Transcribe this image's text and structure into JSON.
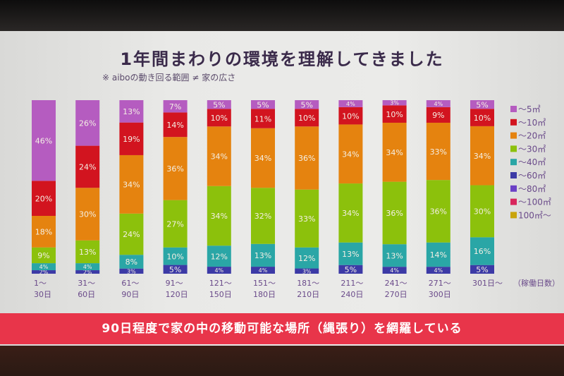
{
  "title": "1年間まわりの環境を理解してきました",
  "subtitle": "※ aiboの動き回る範囲 ≠ 家の広さ",
  "banner": "90日程度で家の中の移動可能な場所（縄張り）を網羅している",
  "chart_data": {
    "type": "bar",
    "stacked": true,
    "orientation": "vertical",
    "categories": [
      [
        "1～",
        "30日"
      ],
      [
        "31～",
        "60日"
      ],
      [
        "61～",
        "90日"
      ],
      [
        "91～",
        "120日"
      ],
      [
        "121～",
        "150日"
      ],
      [
        "151～",
        "180日"
      ],
      [
        "181～",
        "210日"
      ],
      [
        "211～",
        "240日"
      ],
      [
        "241～",
        "270日"
      ],
      [
        "271～",
        "300日"
      ],
      [
        "301日～",
        ""
      ]
    ],
    "x_unit_label": "（稼働日数）",
    "ylim": [
      0,
      100
    ],
    "value_suffix": "%",
    "legend_position": "right",
    "series": [
      {
        "name": "～5㎡",
        "color": "#b55cc0",
        "values": [
          46,
          26,
          13,
          7,
          5,
          5,
          5,
          4,
          3,
          4,
          5
        ]
      },
      {
        "name": "～10㎡",
        "color": "#d2141f",
        "values": [
          20,
          24,
          19,
          14,
          10,
          11,
          10,
          10,
          10,
          9,
          10
        ]
      },
      {
        "name": "～20㎡",
        "color": "#e5830f",
        "values": [
          18,
          30,
          34,
          36,
          34,
          34,
          36,
          34,
          34,
          33,
          34
        ]
      },
      {
        "name": "～30㎡",
        "color": "#8cc10c",
        "values": [
          9,
          13,
          24,
          27,
          34,
          32,
          33,
          34,
          36,
          36,
          30
        ]
      },
      {
        "name": "～40㎡",
        "color": "#2aa6a6",
        "values": [
          4,
          4,
          8,
          10,
          12,
          13,
          12,
          13,
          13,
          14,
          16
        ]
      },
      {
        "name": "～60㎡",
        "color": "#3c3aa6",
        "values": [
          2,
          2,
          3,
          5,
          4,
          4,
          3,
          5,
          4,
          4,
          5
        ]
      },
      {
        "name": "～80㎡",
        "color": "#6b40c6",
        "values": [
          null,
          null,
          null,
          null,
          null,
          null,
          null,
          null,
          null,
          null,
          null
        ]
      },
      {
        "name": "～100㎡",
        "color": "#d8265c",
        "values": [
          null,
          null,
          null,
          null,
          null,
          null,
          null,
          null,
          null,
          null,
          null
        ]
      },
      {
        "name": "100㎡～",
        "color": "#c9a40c",
        "values": [
          null,
          null,
          null,
          null,
          null,
          null,
          null,
          null,
          null,
          null,
          null
        ]
      }
    ]
  }
}
